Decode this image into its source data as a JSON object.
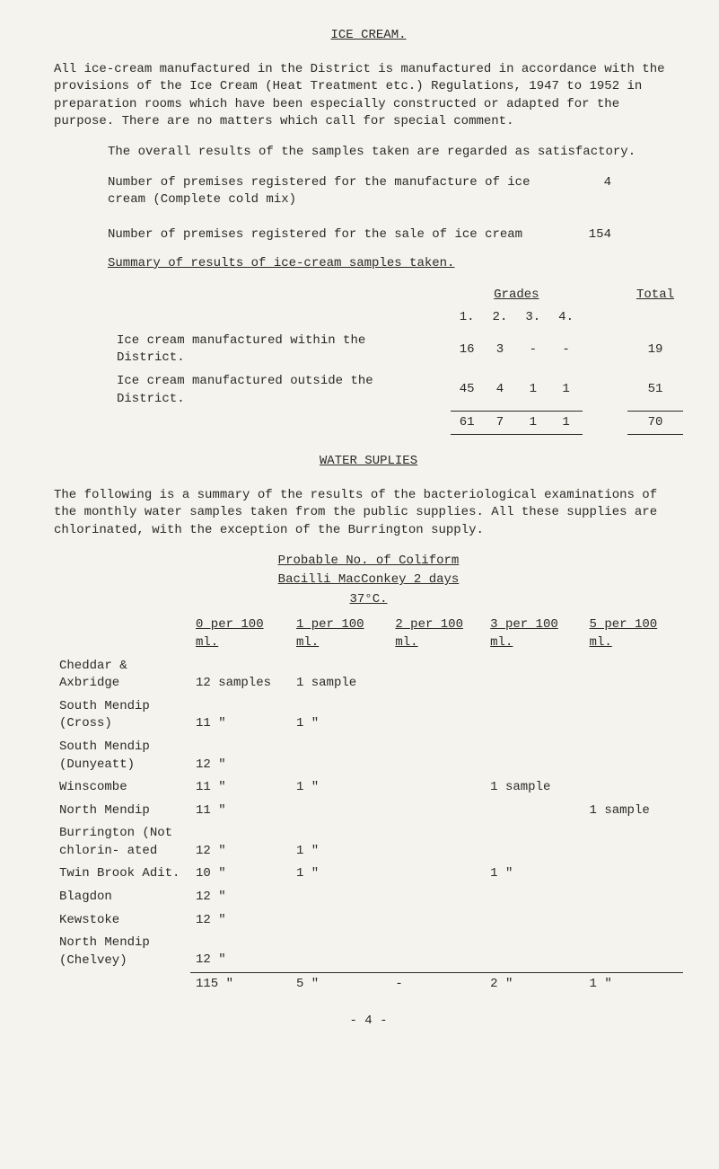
{
  "title": "ICE CREAM.",
  "intro": "All ice-cream manufactured in the District is manufactured in accordance with the provisions of the Ice Cream (Heat Treatment etc.) Regulations, 1947 to 1952 in preparation rooms which have been especially constructed or adapted for the purpose.  There are no matters which call for special comment.",
  "overall": "The overall results of the samples taken are regarded as satisfactory.",
  "reg1_label": "Number of premises registered for the manufacture of ice cream (Complete cold mix)",
  "reg1_value": "4",
  "reg2_label": "Number of premises registered for the sale of ice cream",
  "reg2_value": "154",
  "summary_head": "Summary of results of ice-cream samples taken.",
  "grades": {
    "grades_word": "Grades",
    "total_word": "Total",
    "cols": [
      "1.",
      "2.",
      "3.",
      "4."
    ],
    "rows": [
      {
        "label": "Ice cream manufactured within the District.",
        "vals": [
          "16",
          "3",
          "-",
          "-"
        ],
        "total": "19"
      },
      {
        "label": "Ice cream manufactured outside the District.",
        "vals": [
          "45",
          "4",
          "1",
          "1"
        ],
        "total": "51"
      }
    ],
    "grand": {
      "vals": [
        "61",
        "7",
        "1",
        "1"
      ],
      "total": "70"
    }
  },
  "water_title": "WATER  SUPLIES",
  "water_intro": "The following is a summary of the results of the bacteriological examinations of the monthly water samples taken from the public supplies.  All these supplies are chlorinated, with the exception of the Burrington supply.",
  "chart_head": "Probable No. of Coliform",
  "chart_sub1": "Bacilli MacConkey 2 days",
  "chart_sub2": "37°C.",
  "water_cols": [
    "0 per 100 ml.",
    "1 per 100 ml.",
    "2 per 100 ml.",
    "3 per 100 ml.",
    "5 per 100 ml."
  ],
  "water_rows": [
    {
      "site": "Cheddar & Axbridge",
      "cells": [
        "12 samples",
        "1 sample",
        "",
        "",
        ""
      ]
    },
    {
      "site": "South Mendip (Cross)",
      "cells": [
        "11  \"",
        "1  \"",
        "",
        "",
        ""
      ]
    },
    {
      "site": "South Mendip (Dunyeatt)",
      "cells": [
        "12  \"",
        "",
        "",
        "",
        ""
      ]
    },
    {
      "site": "Winscombe",
      "cells": [
        "11  \"",
        "1  \"",
        "",
        "1 sample",
        ""
      ]
    },
    {
      "site": "North Mendip",
      "cells": [
        "11  \"",
        "",
        "",
        "",
        "1 sample"
      ]
    },
    {
      "site": "Burrington (Not chlorin- ated",
      "cells": [
        "12  \"",
        "1  \"",
        "",
        "",
        ""
      ]
    },
    {
      "site": "Twin Brook Adit.",
      "cells": [
        "10  \"",
        "1  \"",
        "",
        "1  \"",
        ""
      ]
    },
    {
      "site": "Blagdon",
      "cells": [
        "12  \"",
        "",
        "",
        "",
        ""
      ]
    },
    {
      "site": "Kewstoke",
      "cells": [
        "12  \"",
        "",
        "",
        "",
        ""
      ]
    },
    {
      "site": "North Mendip (Chelvey)",
      "cells": [
        "12  \"",
        "",
        "",
        "",
        ""
      ]
    }
  ],
  "water_totals": [
    "115  \"",
    "5  \"",
    "-",
    "2  \"",
    "1  \""
  ],
  "page_num": "- 4 -"
}
